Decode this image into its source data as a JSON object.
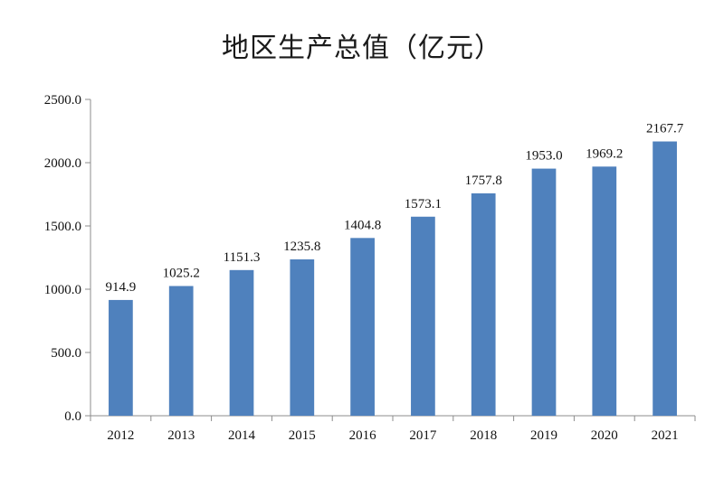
{
  "chart_data": {
    "type": "bar",
    "title": "地区生产总值（亿元）",
    "xlabel": "",
    "ylabel": "",
    "categories": [
      "2012",
      "2013",
      "2014",
      "2015",
      "2016",
      "2017",
      "2018",
      "2019",
      "2020",
      "2021"
    ],
    "values": [
      914.9,
      1025.2,
      1151.3,
      1235.8,
      1404.8,
      1573.1,
      1757.8,
      1953.0,
      1969.2,
      2167.7
    ],
    "data_labels": [
      "914.9",
      "1025.2",
      "1151.3",
      "1235.8",
      "1404.8",
      "1573.1",
      "1757.8",
      "1953.0",
      "1969.2",
      "2167.7"
    ],
    "ylim": [
      0,
      2500
    ],
    "yticks": [
      0,
      500,
      1000,
      1500,
      2000,
      2500
    ],
    "ytick_labels": [
      "0.0",
      "500.0",
      "1000.0",
      "1500.0",
      "2000.0",
      "2500.0"
    ],
    "grid": false,
    "legend": "none",
    "bar_color": "#4f81bd"
  }
}
